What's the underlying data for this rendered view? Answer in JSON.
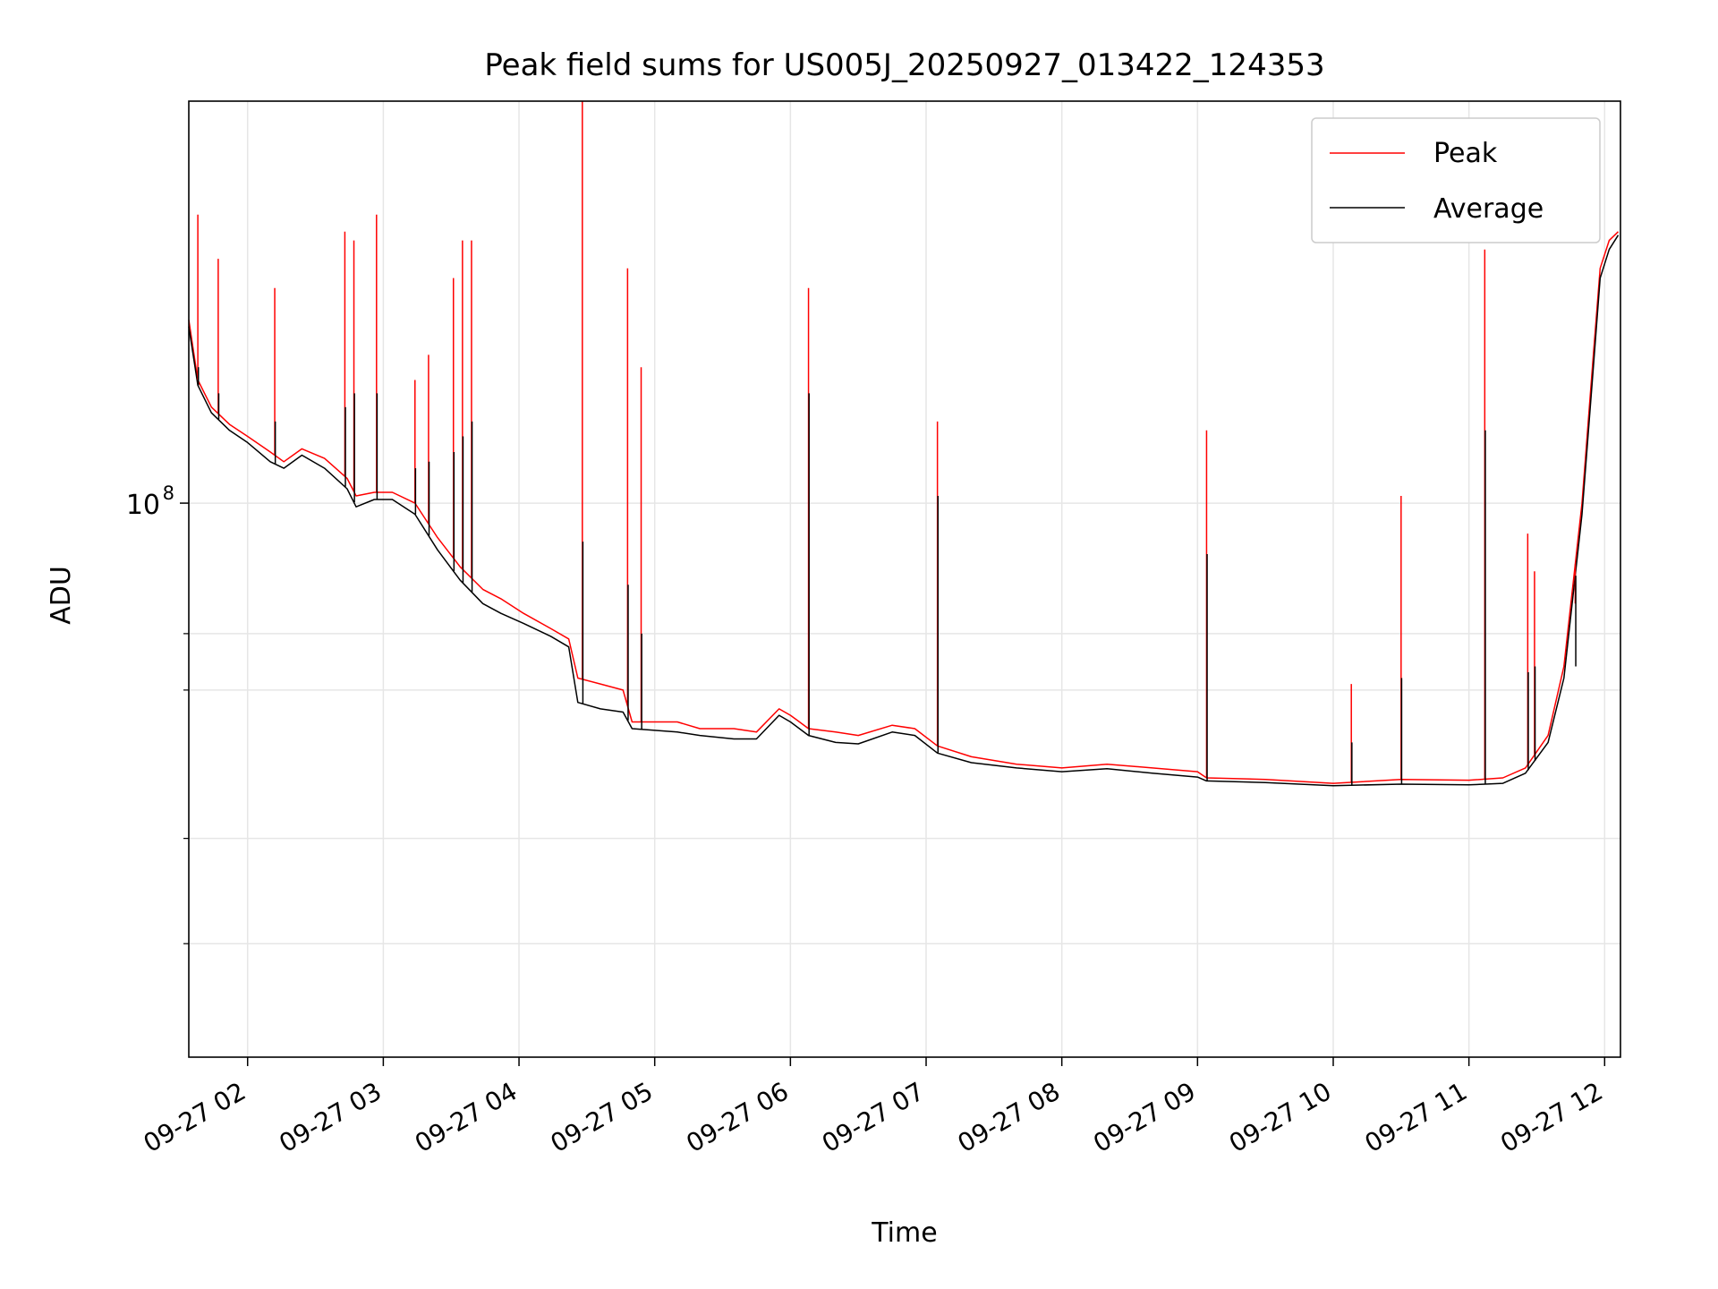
{
  "chart_data": {
    "type": "line",
    "title": "Peak field sums for US005J_20250927_013422_124353",
    "xlabel": "Time",
    "ylabel": "ADU",
    "yscale": "log",
    "ylim": [
      22000000,
      300000000
    ],
    "xlim": [
      "2025-09-27 01:34",
      "2025-09-27 12:07"
    ],
    "x_ticks": [
      {
        "t": "2025-09-27 02:00",
        "label": "09-27 02"
      },
      {
        "t": "2025-09-27 03:00",
        "label": "09-27 03"
      },
      {
        "t": "2025-09-27 04:00",
        "label": "09-27 04"
      },
      {
        "t": "2025-09-27 05:00",
        "label": "09-27 05"
      },
      {
        "t": "2025-09-27 06:00",
        "label": "09-27 06"
      },
      {
        "t": "2025-09-27 07:00",
        "label": "09-27 07"
      },
      {
        "t": "2025-09-27 08:00",
        "label": "09-27 08"
      },
      {
        "t": "2025-09-27 09:00",
        "label": "09-27 09"
      },
      {
        "t": "2025-09-27 10:00",
        "label": "09-27 10"
      },
      {
        "t": "2025-09-27 11:00",
        "label": "09-27 11"
      },
      {
        "t": "2025-09-27 12:00",
        "label": "09-27 12"
      }
    ],
    "y_major_ticks": [
      {
        "value": 100000000,
        "base": "10",
        "exp": "8"
      }
    ],
    "y_minor_ticks": [
      30000000,
      40000000,
      60000000,
      70000000
    ],
    "grid": true,
    "legend_position": "top-right",
    "colors": {
      "peak": "#ff0000",
      "average": "#000000",
      "grid": "#e6e6e6"
    },
    "series": [
      {
        "name": "Peak",
        "color": "#ff0000",
        "points": [
          [
            "2025-09-27 01:34",
            165000000
          ],
          [
            "2025-09-27 01:38",
            140000000
          ],
          [
            "2025-09-27 01:44",
            130000000
          ],
          [
            "2025-09-27 01:52",
            124000000
          ],
          [
            "2025-09-27 02:00",
            120000000
          ],
          [
            "2025-09-27 02:10",
            115000000
          ],
          [
            "2025-09-27 02:16",
            112000000
          ],
          [
            "2025-09-27 02:24",
            116000000
          ],
          [
            "2025-09-27 02:34",
            113000000
          ],
          [
            "2025-09-27 02:44",
            107000000
          ],
          [
            "2025-09-27 02:48",
            102000000
          ],
          [
            "2025-09-27 02:56",
            103000000
          ],
          [
            "2025-09-27 03:04",
            103000000
          ],
          [
            "2025-09-27 03:14",
            100000000
          ],
          [
            "2025-09-27 03:24",
            91000000
          ],
          [
            "2025-09-27 03:34",
            84000000
          ],
          [
            "2025-09-27 03:44",
            79000000
          ],
          [
            "2025-09-27 03:52",
            77000000
          ],
          [
            "2025-09-27 04:02",
            74000000
          ],
          [
            "2025-09-27 04:14",
            71000000
          ],
          [
            "2025-09-27 04:22",
            69000000
          ],
          [
            "2025-09-27 04:26",
            62000000
          ],
          [
            "2025-09-27 04:36",
            61000000
          ],
          [
            "2025-09-27 04:46",
            60000000
          ],
          [
            "2025-09-27 04:50",
            55000000
          ],
          [
            "2025-09-27 05:10",
            55000000
          ],
          [
            "2025-09-27 05:20",
            54000000
          ],
          [
            "2025-09-27 05:35",
            54000000
          ],
          [
            "2025-09-27 05:45",
            53500000
          ],
          [
            "2025-09-27 05:55",
            57000000
          ],
          [
            "2025-09-27 06:00",
            56000000
          ],
          [
            "2025-09-27 06:08",
            54000000
          ],
          [
            "2025-09-27 06:20",
            53500000
          ],
          [
            "2025-09-27 06:30",
            53000000
          ],
          [
            "2025-09-27 06:45",
            54500000
          ],
          [
            "2025-09-27 06:55",
            54000000
          ],
          [
            "2025-09-27 07:05",
            51500000
          ],
          [
            "2025-09-27 07:20",
            50000000
          ],
          [
            "2025-09-27 07:40",
            49000000
          ],
          [
            "2025-09-27 08:00",
            48500000
          ],
          [
            "2025-09-27 08:20",
            49000000
          ],
          [
            "2025-09-27 08:40",
            48500000
          ],
          [
            "2025-09-27 09:00",
            48000000
          ],
          [
            "2025-09-27 09:04",
            47200000
          ],
          [
            "2025-09-27 09:30",
            47000000
          ],
          [
            "2025-09-27 10:00",
            46500000
          ],
          [
            "2025-09-27 10:30",
            47000000
          ],
          [
            "2025-09-27 11:00",
            46900000
          ],
          [
            "2025-09-27 11:15",
            47200000
          ],
          [
            "2025-09-27 11:25",
            48500000
          ],
          [
            "2025-09-27 11:35",
            53000000
          ],
          [
            "2025-09-27 11:42",
            64000000
          ],
          [
            "2025-09-27 11:50",
            100000000
          ],
          [
            "2025-09-27 11:55",
            150000000
          ],
          [
            "2025-09-27 11:58",
            190000000
          ],
          [
            "2025-09-27 12:02",
            205000000
          ],
          [
            "2025-09-27 12:06",
            210000000
          ]
        ]
      },
      {
        "name": "Average",
        "color": "#000000",
        "points": [
          [
            "2025-09-27 01:34",
            162000000
          ],
          [
            "2025-09-27 01:38",
            138000000
          ],
          [
            "2025-09-27 01:44",
            128000000
          ],
          [
            "2025-09-27 01:52",
            122000000
          ],
          [
            "2025-09-27 02:00",
            118000000
          ],
          [
            "2025-09-27 02:10",
            112000000
          ],
          [
            "2025-09-27 02:16",
            110000000
          ],
          [
            "2025-09-27 02:24",
            114000000
          ],
          [
            "2025-09-27 02:34",
            110000000
          ],
          [
            "2025-09-27 02:44",
            104000000
          ],
          [
            "2025-09-27 02:48",
            99000000
          ],
          [
            "2025-09-27 02:56",
            101000000
          ],
          [
            "2025-09-27 03:04",
            101000000
          ],
          [
            "2025-09-27 03:14",
            97000000
          ],
          [
            "2025-09-27 03:24",
            88000000
          ],
          [
            "2025-09-27 03:34",
            81000000
          ],
          [
            "2025-09-27 03:44",
            76000000
          ],
          [
            "2025-09-27 03:52",
            74000000
          ],
          [
            "2025-09-27 04:02",
            72000000
          ],
          [
            "2025-09-27 04:14",
            69500000
          ],
          [
            "2025-09-27 04:22",
            67500000
          ],
          [
            "2025-09-27 04:26",
            58000000
          ],
          [
            "2025-09-27 04:36",
            57000000
          ],
          [
            "2025-09-27 04:46",
            56500000
          ],
          [
            "2025-09-27 04:50",
            54000000
          ],
          [
            "2025-09-27 05:10",
            53500000
          ],
          [
            "2025-09-27 05:20",
            53000000
          ],
          [
            "2025-09-27 05:35",
            52500000
          ],
          [
            "2025-09-27 05:45",
            52500000
          ],
          [
            "2025-09-27 05:55",
            56000000
          ],
          [
            "2025-09-27 06:00",
            55000000
          ],
          [
            "2025-09-27 06:08",
            53000000
          ],
          [
            "2025-09-27 06:20",
            52000000
          ],
          [
            "2025-09-27 06:30",
            51800000
          ],
          [
            "2025-09-27 06:45",
            53500000
          ],
          [
            "2025-09-27 06:55",
            53000000
          ],
          [
            "2025-09-27 07:05",
            50500000
          ],
          [
            "2025-09-27 07:20",
            49200000
          ],
          [
            "2025-09-27 07:40",
            48500000
          ],
          [
            "2025-09-27 08:00",
            48000000
          ],
          [
            "2025-09-27 08:20",
            48400000
          ],
          [
            "2025-09-27 08:40",
            47800000
          ],
          [
            "2025-09-27 09:00",
            47300000
          ],
          [
            "2025-09-27 09:04",
            46800000
          ],
          [
            "2025-09-27 09:30",
            46600000
          ],
          [
            "2025-09-27 10:00",
            46200000
          ],
          [
            "2025-09-27 10:30",
            46400000
          ],
          [
            "2025-09-27 11:00",
            46300000
          ],
          [
            "2025-09-27 11:15",
            46500000
          ],
          [
            "2025-09-27 11:25",
            47800000
          ],
          [
            "2025-09-27 11:35",
            52000000
          ],
          [
            "2025-09-27 11:42",
            62000000
          ],
          [
            "2025-09-27 11:50",
            97000000
          ],
          [
            "2025-09-27 11:55",
            145000000
          ],
          [
            "2025-09-27 11:58",
            185000000
          ],
          [
            "2025-09-27 12:02",
            200000000
          ],
          [
            "2025-09-27 12:06",
            208000000
          ]
        ]
      }
    ],
    "spikes": [
      {
        "t": "2025-09-27 01:38",
        "peak": 220000000,
        "average": 145000000
      },
      {
        "t": "2025-09-27 01:47",
        "peak": 195000000,
        "average": 135000000
      },
      {
        "t": "2025-09-27 02:12",
        "peak": 180000000,
        "average": 125000000
      },
      {
        "t": "2025-09-27 02:43",
        "peak": 210000000,
        "average": 130000000
      },
      {
        "t": "2025-09-27 02:47",
        "peak": 205000000,
        "average": 135000000
      },
      {
        "t": "2025-09-27 02:57",
        "peak": 220000000,
        "average": 135000000
      },
      {
        "t": "2025-09-27 03:14",
        "peak": 140000000,
        "average": 110000000
      },
      {
        "t": "2025-09-27 03:20",
        "peak": 150000000,
        "average": 112000000
      },
      {
        "t": "2025-09-27 03:31",
        "peak": 185000000,
        "average": 115000000
      },
      {
        "t": "2025-09-27 03:35",
        "peak": 205000000,
        "average": 120000000
      },
      {
        "t": "2025-09-27 03:39",
        "peak": 205000000,
        "average": 125000000
      },
      {
        "t": "2025-09-27 04:28",
        "peak": 300000000,
        "average": 90000000
      },
      {
        "t": "2025-09-27 04:48",
        "peak": 190000000,
        "average": 80000000
      },
      {
        "t": "2025-09-27 04:54",
        "peak": 145000000,
        "average": 70000000
      },
      {
        "t": "2025-09-27 06:08",
        "peak": 180000000,
        "average": 135000000
      },
      {
        "t": "2025-09-27 07:05",
        "peak": 125000000,
        "average": 102000000
      },
      {
        "t": "2025-09-27 09:04",
        "peak": 122000000,
        "average": 87000000
      },
      {
        "t": "2025-09-27 10:08",
        "peak": 61000000,
        "average": 52000000
      },
      {
        "t": "2025-09-27 10:30",
        "peak": 102000000,
        "average": 62000000
      },
      {
        "t": "2025-09-27 11:07",
        "peak": 200000000,
        "average": 122000000
      },
      {
        "t": "2025-09-27 11:26",
        "peak": 92000000,
        "average": 63000000
      },
      {
        "t": "2025-09-27 11:29",
        "peak": 83000000,
        "average": 64000000
      },
      {
        "t": "2025-09-27 11:47",
        "peak": 76000000,
        "average": 64000000
      }
    ],
    "legend": [
      {
        "label": "Peak",
        "color": "#ff0000"
      },
      {
        "label": "Average",
        "color": "#000000"
      }
    ]
  }
}
